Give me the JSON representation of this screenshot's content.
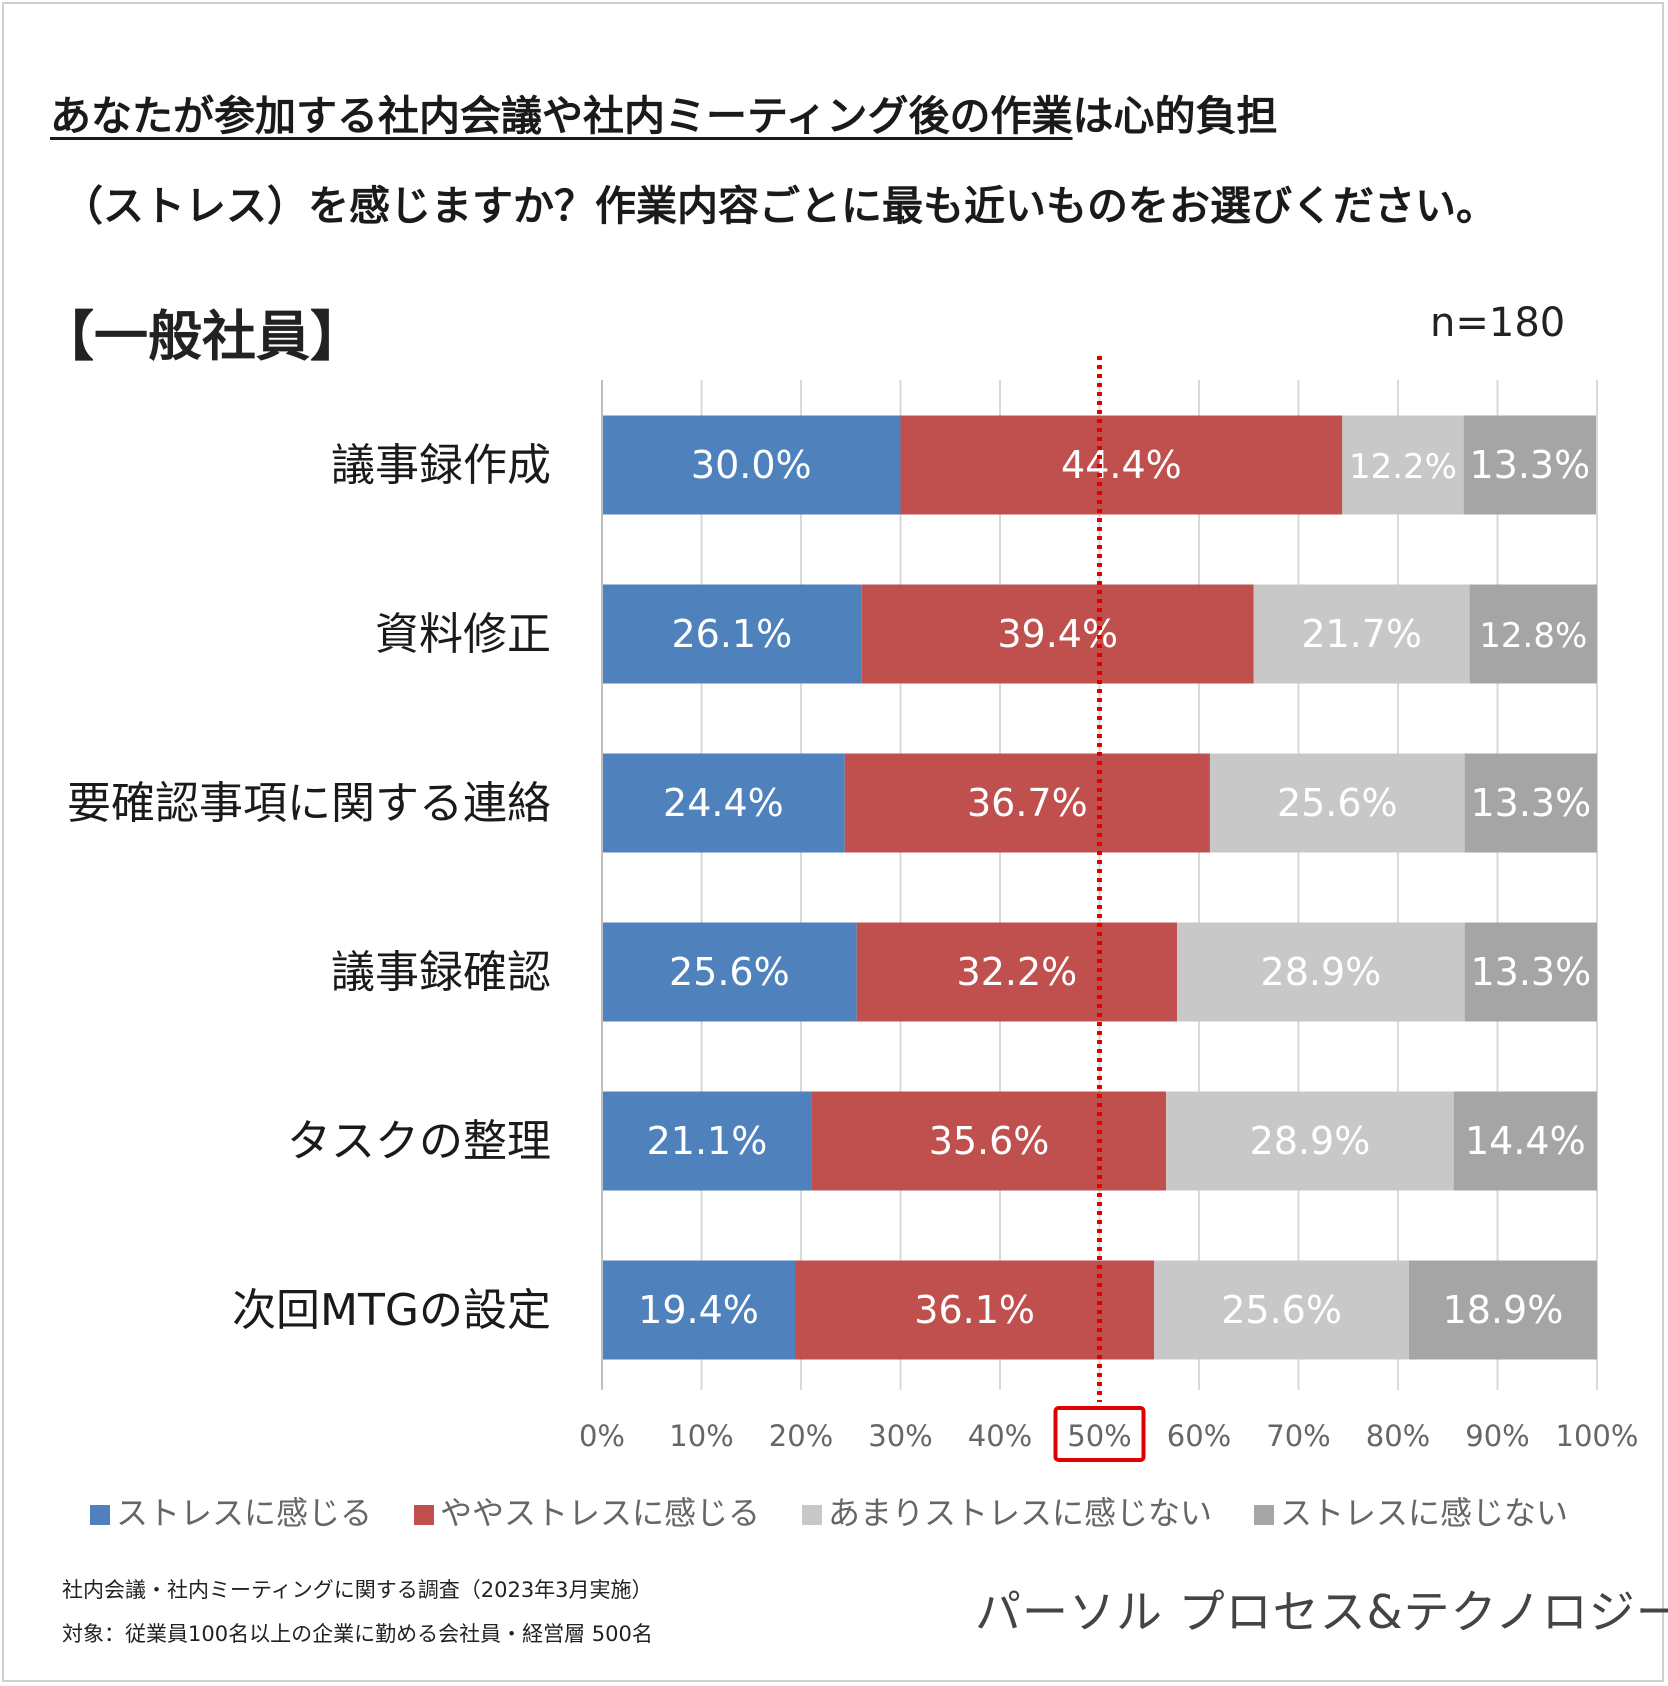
{
  "header": {
    "title_line1_underlined": "あなたが参加する社内会議や社内ミーティング後の作業",
    "title_line1_rest": "は心的負担",
    "title_line2": "（ストレス）を感じますか？作業内容ごとに最も近いものをお選びください。",
    "section_label": "【一般社員】",
    "sample_size": "n=180"
  },
  "colors": {
    "series": [
      "#4f81bd",
      "#c0504d",
      "#c8c8c8",
      "#a5a5a5"
    ],
    "reference_line": "#e00000",
    "highlight_box": "#e00000",
    "grid": "#d9d9d9"
  },
  "chart_data": {
    "type": "bar",
    "orientation": "horizontal",
    "stacked": true,
    "categories": [
      "議事録作成",
      "資料修正",
      "要確認事項に関する連絡",
      "議事録確認",
      "タスクの整理",
      "次回MTGの設定"
    ],
    "series": [
      {
        "name": "ストレスに感じる",
        "values": [
          30.0,
          26.1,
          24.4,
          25.6,
          21.1,
          19.4
        ]
      },
      {
        "name": "ややストレスに感じる",
        "values": [
          44.4,
          39.4,
          36.7,
          32.2,
          35.6,
          36.1
        ]
      },
      {
        "name": "あまりストレスに感じない",
        "values": [
          12.2,
          21.7,
          25.6,
          28.9,
          28.9,
          25.6
        ]
      },
      {
        "name": "ストレスに感じない",
        "values": [
          13.3,
          12.8,
          13.3,
          13.3,
          14.4,
          18.9
        ]
      }
    ],
    "x_ticks": [
      "0%",
      "10%",
      "20%",
      "30%",
      "40%",
      "50%",
      "60%",
      "70%",
      "80%",
      "90%",
      "100%"
    ],
    "xlim": [
      0,
      100
    ],
    "reference_value": 50,
    "highlighted_tick": "50%",
    "legend_position": "bottom",
    "value_format": "percent_1dp"
  },
  "footer": {
    "survey": "社内会議・社内ミーティングに関する調査（2023年3月実施）",
    "target": "対象：従業員100名以上の企業に勤める会社員・経営層 500名",
    "brand": "パーソル プロセス&テクノロジー"
  }
}
